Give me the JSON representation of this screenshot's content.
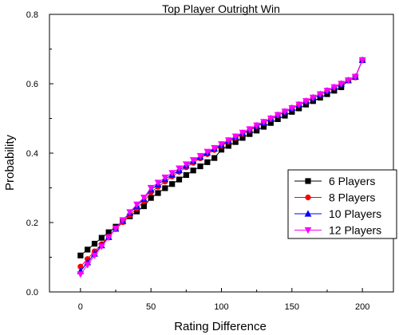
{
  "chart_data": {
    "type": "line",
    "title": "Top Player Outright Win",
    "xlabel": "Rating Difference",
    "ylabel": "Probability",
    "xlim": [
      -22,
      222
    ],
    "ylim": [
      0.0,
      0.8
    ],
    "xticks": [
      0,
      50,
      100,
      150,
      200
    ],
    "yticks": [
      0.0,
      0.2,
      0.4,
      0.6,
      0.8
    ],
    "xtick_labels": [
      "0",
      "50",
      "100",
      "150",
      "200"
    ],
    "ytick_labels": [
      "0.0",
      "0.2",
      "0.4",
      "0.6",
      "0.8"
    ],
    "legend_position": "right",
    "grid": false,
    "x": [
      0,
      5,
      10,
      15,
      20,
      25,
      30,
      35,
      40,
      45,
      50,
      55,
      60,
      65,
      70,
      75,
      80,
      85,
      90,
      95,
      100,
      105,
      110,
      115,
      120,
      125,
      130,
      135,
      140,
      145,
      150,
      155,
      160,
      165,
      170,
      175,
      180,
      185,
      190,
      195,
      200
    ],
    "series": [
      {
        "name": "6 Players",
        "color": "#000000",
        "marker": "square",
        "values": [
          0.105,
          0.122,
          0.139,
          0.156,
          0.172,
          0.188,
          0.203,
          0.218,
          0.232,
          0.247,
          0.271,
          0.285,
          0.299,
          0.311,
          0.324,
          0.337,
          0.35,
          0.362,
          0.374,
          0.386,
          0.41,
          0.421,
          0.432,
          0.444,
          0.455,
          0.465,
          0.476,
          0.487,
          0.498,
          0.508,
          0.519,
          0.529,
          0.54,
          0.55,
          0.56,
          0.57,
          0.58,
          0.59,
          0.61,
          0.62,
          0.668
        ]
      },
      {
        "name": "8 Players",
        "color": "#ff0000",
        "marker": "circle",
        "values": [
          0.073,
          0.095,
          0.117,
          0.138,
          0.16,
          0.181,
          0.201,
          0.221,
          0.241,
          0.261,
          0.287,
          0.303,
          0.318,
          0.333,
          0.346,
          0.359,
          0.372,
          0.385,
          0.397,
          0.409,
          0.421,
          0.433,
          0.444,
          0.455,
          0.466,
          0.477,
          0.488,
          0.498,
          0.509,
          0.519,
          0.529,
          0.539,
          0.549,
          0.559,
          0.569,
          0.579,
          0.589,
          0.599,
          0.609,
          0.618,
          0.668
        ]
      },
      {
        "name": "10 Players",
        "color": "#0000ff",
        "marker": "triangle-up",
        "values": [
          0.06,
          0.085,
          0.11,
          0.134,
          0.158,
          0.182,
          0.205,
          0.227,
          0.248,
          0.268,
          0.295,
          0.31,
          0.325,
          0.338,
          0.351,
          0.364,
          0.377,
          0.389,
          0.401,
          0.413,
          0.424,
          0.436,
          0.447,
          0.458,
          0.468,
          0.479,
          0.489,
          0.5,
          0.51,
          0.52,
          0.53,
          0.54,
          0.55,
          0.56,
          0.57,
          0.58,
          0.59,
          0.6,
          0.61,
          0.62,
          0.668
        ]
      },
      {
        "name": "12 Players",
        "color": "#ff00ff",
        "marker": "triangle-down",
        "values": [
          0.051,
          0.078,
          0.105,
          0.131,
          0.157,
          0.183,
          0.207,
          0.23,
          0.252,
          0.272,
          0.3,
          0.315,
          0.33,
          0.343,
          0.356,
          0.368,
          0.38,
          0.392,
          0.404,
          0.415,
          0.426,
          0.437,
          0.448,
          0.459,
          0.469,
          0.48,
          0.49,
          0.5,
          0.51,
          0.52,
          0.53,
          0.54,
          0.55,
          0.56,
          0.57,
          0.58,
          0.59,
          0.6,
          0.61,
          0.62,
          0.668
        ]
      }
    ]
  }
}
